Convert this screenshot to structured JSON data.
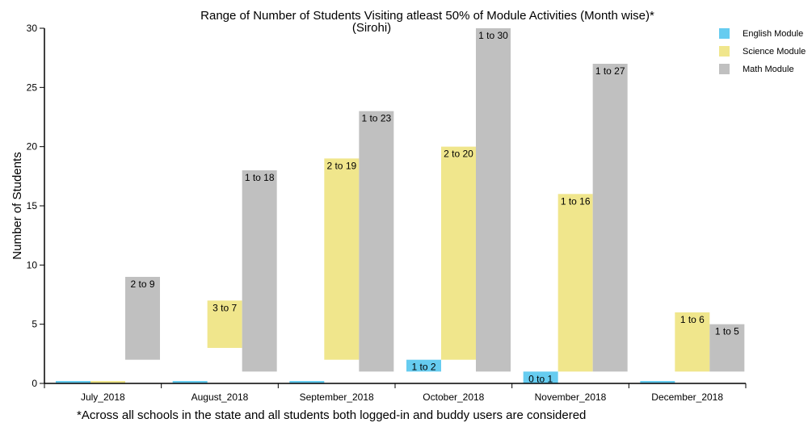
{
  "chart_data": {
    "type": "bar",
    "title": "Range of Number of Students Visiting atleast 50% of Module Activities (Month wise)*",
    "subtitle": "(Sirohi)",
    "xlabel": "",
    "ylabel": "Number of Students",
    "ylim": [
      0,
      30
    ],
    "yticks": [
      "0",
      "5",
      "10",
      "15",
      "20",
      "25",
      "30"
    ],
    "categories": [
      "July_2018",
      "August_2018",
      "September_2018",
      "October_2018",
      "November_2018",
      "December_2018"
    ],
    "legend_position": "top-right",
    "series": [
      {
        "name": "English Module",
        "color": "#66ccf0",
        "ranges": [
          [
            0,
            0
          ],
          [
            0,
            0
          ],
          [
            0,
            0
          ],
          [
            1,
            2
          ],
          [
            0,
            1
          ],
          [
            0,
            0
          ]
        ],
        "labels": [
          "",
          "",
          "",
          "1 to 2",
          "0 to 1",
          ""
        ]
      },
      {
        "name": "Science Module",
        "color": "#f0e68c",
        "ranges": [
          [
            0,
            0
          ],
          [
            3,
            7
          ],
          [
            2,
            19
          ],
          [
            2,
            20
          ],
          [
            1,
            16
          ],
          [
            1,
            6
          ]
        ],
        "labels": [
          "",
          "3 to 7",
          "2 to 19",
          "2 to 20",
          "1 to 16",
          "1 to 6"
        ]
      },
      {
        "name": "Math Module",
        "color": "#c0c0c0",
        "ranges": [
          [
            2,
            9
          ],
          [
            1,
            18
          ],
          [
            1,
            23
          ],
          [
            1,
            30
          ],
          [
            1,
            27
          ],
          [
            1,
            5
          ]
        ],
        "labels": [
          "2 to 9",
          "1 to 18",
          "1 to 23",
          "1 to 30",
          "1 to 27",
          "1 to 5"
        ]
      }
    ],
    "footnote": "*Across all schools in the state and all students both logged-in and buddy users are considered"
  }
}
